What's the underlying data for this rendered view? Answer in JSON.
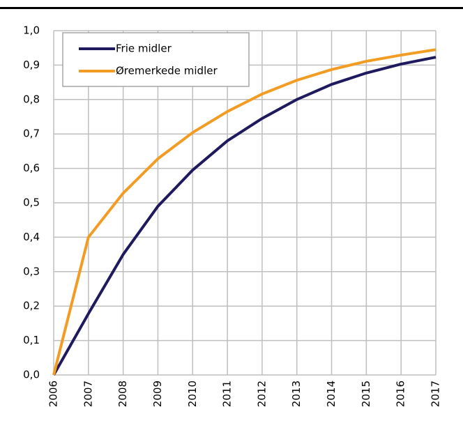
{
  "chart_data": {
    "type": "line",
    "categories": [
      "2006",
      "2007",
      "2008",
      "2009",
      "2010",
      "2011",
      "2012",
      "2013",
      "2014",
      "2015",
      "2016",
      "2017"
    ],
    "series": [
      {
        "name": "Frie midler",
        "color": "#1f1a5e",
        "values": [
          0,
          0.178,
          0.35,
          0.49,
          0.595,
          0.68,
          0.745,
          0.8,
          0.844,
          0.877,
          0.903,
          0.923
        ]
      },
      {
        "name": "Øremerkede midler",
        "color": "#f39c24",
        "values": [
          0,
          0.4,
          0.528,
          0.628,
          0.704,
          0.765,
          0.816,
          0.856,
          0.887,
          0.911,
          0.929,
          0.945
        ]
      }
    ],
    "ylim": [
      0,
      1
    ],
    "yticks": [
      {
        "value": 0,
        "label": "0,0"
      },
      {
        "value": 0.1,
        "label": "0,1"
      },
      {
        "value": 0.2,
        "label": "0,2"
      },
      {
        "value": 0.3,
        "label": "0,3"
      },
      {
        "value": 0.4,
        "label": "0,4"
      },
      {
        "value": 0.5,
        "label": "0,5"
      },
      {
        "value": 0.6,
        "label": "0,6"
      },
      {
        "value": 0.7,
        "label": "0,7"
      },
      {
        "value": 0.8,
        "label": "0,8"
      },
      {
        "value": 0.9,
        "label": "0,9"
      },
      {
        "value": 1,
        "label": "1,0"
      }
    ],
    "grid": true,
    "legend": "upper left"
  }
}
